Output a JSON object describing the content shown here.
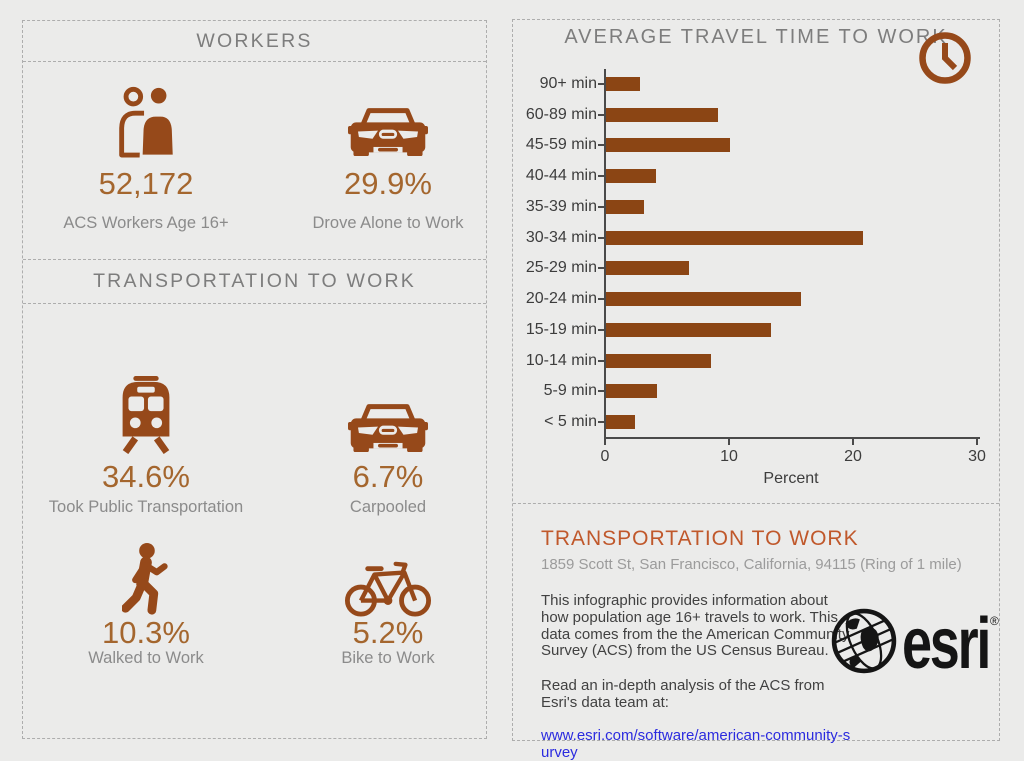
{
  "colors": {
    "background": "#EBEBEA",
    "dashed_border": "#ADADAD",
    "icon_brown": "#96491A",
    "bar_brown": "#8B4514",
    "stat_value": "#A4662E",
    "stat_label": "#8B8B8B",
    "section_header": "#7D7D7D",
    "accent_orange": "#C0582B",
    "link_blue": "#2B2BDF"
  },
  "workers": {
    "title": "WORKERS",
    "stats": [
      {
        "icon": "people-icon",
        "value": "52,172",
        "label": "ACS Workers Age 16+"
      },
      {
        "icon": "car-icon",
        "value": "29.9%",
        "label": "Drove Alone to Work"
      }
    ]
  },
  "transport": {
    "title": "TRANSPORTATION TO WORK",
    "stats": [
      {
        "icon": "train-icon",
        "value": "34.6%",
        "label": "Took Public Transportation"
      },
      {
        "icon": "car-icon",
        "value": "6.7%",
        "label": "Carpooled"
      },
      {
        "icon": "walk-icon",
        "value": "10.3%",
        "label": "Walked to Work"
      },
      {
        "icon": "bike-icon",
        "value": "5.2%",
        "label": "Bike to Work"
      }
    ]
  },
  "chart_data": {
    "type": "bar",
    "orientation": "horizontal",
    "title": "AVERAGE TRAVEL TIME TO WORK",
    "categories": [
      "90+ min",
      "60-89 min",
      "45-59 min",
      "40-44 min",
      "35-39 min",
      "30-34 min",
      "25-29 min",
      "20-24 min",
      "15-19 min",
      "10-14 min",
      "5-9 min",
      "< 5 min"
    ],
    "values": [
      2.7,
      9.0,
      10.0,
      4.0,
      3.1,
      20.7,
      6.7,
      15.7,
      13.3,
      8.5,
      4.1,
      2.3
    ],
    "xlabel": "Percent",
    "xlim": [
      0,
      30
    ],
    "xticks": [
      0,
      10,
      20,
      30
    ],
    "grid": false,
    "legend": false,
    "bar_color": "#8B4514"
  },
  "info": {
    "title": "TRANSPORTATION TO WORK",
    "subtitle": "1859 Scott St, San Francisco, California, 94115 (Ring of 1 mile)",
    "paragraph1": "This infographic provides information about\nhow population age 16+ travels to work. This\ndata comes from the the American Community\nSurvey (ACS) from the US Census Bureau.",
    "paragraph2": "Read an in-depth analysis of the ACS from\nEsri's data team at:",
    "link": "www.esri.com/software/american-community-s\nurvey",
    "logo_text": "esri",
    "logo_reg": "®"
  }
}
